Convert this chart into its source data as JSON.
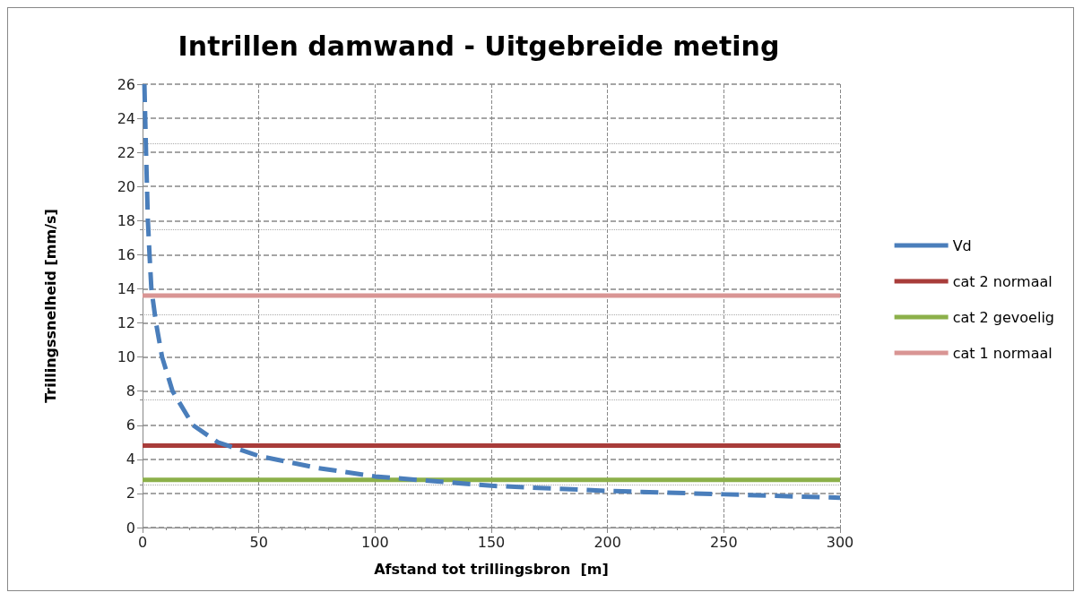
{
  "chart_data": {
    "type": "line",
    "title": "Intrillen damwand - Uitgebreide meting",
    "xlabel": "Afstand tot trillingsbron  [m]",
    "ylabel": "Trillingssnelheid [mm/s]",
    "xlim": [
      0,
      300
    ],
    "xticks": [
      0,
      50,
      100,
      150,
      200,
      250,
      300
    ],
    "ylim": [
      0,
      26
    ],
    "yticks": [
      0,
      2,
      4,
      6,
      8,
      10,
      12,
      14,
      16,
      18,
      20,
      22,
      24,
      26
    ],
    "grid": true,
    "legend": "right",
    "marker": "none",
    "series": [
      {
        "name": "Vd",
        "color": "#4a7ebb",
        "line_style": "dashed",
        "x": [
          0.8,
          1.5,
          2.3,
          3,
          3.8,
          5.8,
          8.4,
          12.9,
          21.7,
          32.4,
          50,
          75,
          100,
          150,
          200,
          250,
          300
        ],
        "values": [
          26,
          22,
          18,
          16,
          14,
          12,
          10,
          8,
          6,
          5,
          4.2,
          3.5,
          3,
          2.45,
          2.15,
          1.95,
          1.75
        ]
      },
      {
        "name": "cat 2 normaal",
        "color": "#a83c3a",
        "line_style": "solid",
        "x": [
          0,
          300
        ],
        "values": [
          4.8,
          4.8
        ]
      },
      {
        "name": "cat 2 gevoelig",
        "color": "#8cb04a",
        "line_style": "solid",
        "x": [
          0,
          300
        ],
        "values": [
          2.8,
          2.8
        ]
      },
      {
        "name": "cat 1 normaal",
        "color": "#d99594",
        "line_style": "solid",
        "x": [
          0,
          300
        ],
        "values": [
          13.6,
          13.6
        ]
      }
    ]
  }
}
